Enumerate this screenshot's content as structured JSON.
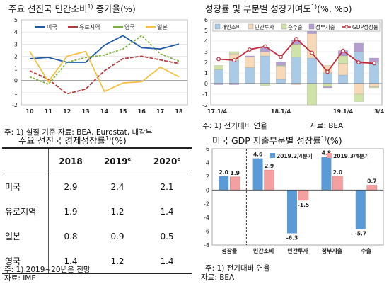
{
  "panel1": {
    "title": "주요 선진국 민간소비",
    "title_sup": "1)",
    "title_tail": " 증가율(%)",
    "note": "주: 1) 실질 기준    자료: BEA, Eurostat, 내각부"
  },
  "panel2": {
    "title": "성장률 및 부문별 성장기여도",
    "title_sup": "1)",
    "title_tail": "(%, %p)",
    "note1": "주: 1) 전기대비 연율",
    "note2": "자료: BEA"
  },
  "panel3": {
    "title": "주요 선진국 경제성장률",
    "title_sup": "1)",
    "title_tail": "(%)",
    "note1": "주: 1) 2019~20년은 전망",
    "note2": "자료: IMF"
  },
  "panel4": {
    "title": "미국 GDP 지출부문별 성장률",
    "title_sup": "1)",
    "title_tail": "(%)",
    "note1": "주: 1) 전기대비 연율",
    "note2": "자료: BEA"
  },
  "chart_data": [
    {
      "type": "line",
      "x": [
        "10",
        "11",
        "12",
        "13",
        "14",
        "15",
        "16",
        "17",
        "18"
      ],
      "ylim": [
        -2,
        5
      ],
      "yticks": [
        -2,
        -1,
        0,
        1,
        2,
        3,
        4,
        5
      ],
      "series": [
        {
          "name": "미국",
          "color": "#1f5aa8",
          "values": [
            1.8,
            1.9,
            1.5,
            1.5,
            2.9,
            3.7,
            2.7,
            2.6,
            3.0
          ]
        },
        {
          "name": "유로지역",
          "color": "#b83a3a",
          "values": [
            0.8,
            0.1,
            -1.1,
            -0.7,
            0.8,
            1.8,
            2.0,
            1.7,
            1.4
          ]
        },
        {
          "name": "영국",
          "color": "#7fae3a",
          "values": [
            0.3,
            -0.3,
            1.5,
            1.9,
            2.1,
            2.6,
            3.7,
            2.2,
            1.6
          ]
        },
        {
          "name": "일본",
          "color": "#f5c142",
          "values": [
            2.4,
            -0.1,
            2.0,
            2.4,
            -0.9,
            -0.2,
            -0.1,
            1.1,
            0.3
          ]
        }
      ]
    },
    {
      "type": "bar",
      "stacked": true,
      "xticks": [
        "17.1/4",
        "18.1/4",
        "19.1/4",
        "3/4"
      ],
      "ylim": [
        -2,
        6
      ],
      "yticks": [
        -2,
        -1,
        0,
        1,
        2,
        3,
        4,
        5,
        6
      ],
      "categories": [
        "17.1/4",
        "17.2/4",
        "17.3/4",
        "17.4/4",
        "18.1/4",
        "18.2/4",
        "18.3/4",
        "18.4/4",
        "19.1/4",
        "19.2/4",
        "19.3/4"
      ],
      "series": [
        {
          "name": "개인소비",
          "color": "#a9cbe8",
          "values": [
            1.3,
            2.2,
            1.5,
            2.6,
            0.4,
            2.5,
            2.4,
            1.0,
            0.8,
            3.0,
            2.0
          ]
        },
        {
          "name": "민간투자",
          "color": "#f7d9b8",
          "values": [
            0.0,
            0.6,
            1.0,
            0.4,
            1.2,
            -0.1,
            2.3,
            0.7,
            1.1,
            -1.0,
            -0.3
          ]
        },
        {
          "name": "순수출",
          "color": "#cfe3a8",
          "values": [
            0.4,
            0.2,
            0.0,
            -0.2,
            0.1,
            1.2,
            -2.0,
            -0.3,
            0.7,
            -0.7,
            -0.1
          ]
        },
        {
          "name": "정부지출",
          "color": "#b49dd1",
          "values": [
            -0.1,
            -0.1,
            0.1,
            0.4,
            0.3,
            0.4,
            0.4,
            -0.1,
            0.5,
            0.8,
            0.4
          ]
        }
      ],
      "line": {
        "name": "GDP성장률",
        "color": "#c22b3c",
        "values": [
          2.3,
          2.2,
          3.2,
          3.5,
          2.5,
          4.2,
          2.9,
          1.1,
          3.1,
          2.0,
          1.9
        ]
      }
    },
    {
      "type": "table",
      "columns": [
        "",
        "2018",
        "2019",
        "2020"
      ],
      "column_sup": [
        "",
        "",
        "e",
        "e"
      ],
      "rows": [
        [
          "미국",
          "2.9",
          "2.4",
          "2.1"
        ],
        [
          "유로지역",
          "1.9",
          "1.2",
          "1.4"
        ],
        [
          "일본",
          "0.8",
          "0.9",
          "0.5"
        ],
        [
          "영국",
          "1.4",
          "1.2",
          "1.4"
        ]
      ]
    },
    {
      "type": "bar",
      "categories": [
        "성장률",
        "민간소비",
        "민간투자",
        "정부지출",
        "수출"
      ],
      "ylim": [
        -8,
        6
      ],
      "yticks": [
        -8,
        -6,
        -4,
        -2,
        0,
        2,
        4,
        6
      ],
      "series": [
        {
          "name": "2019.2/4분기",
          "color": "#5b9bd5",
          "values": [
            2.0,
            4.6,
            -6.3,
            4.8,
            -5.7
          ]
        },
        {
          "name": "2019.3/4분기",
          "color": "#f4a0a0",
          "values": [
            1.9,
            2.9,
            -1.5,
            2.0,
            0.7
          ]
        }
      ]
    }
  ]
}
